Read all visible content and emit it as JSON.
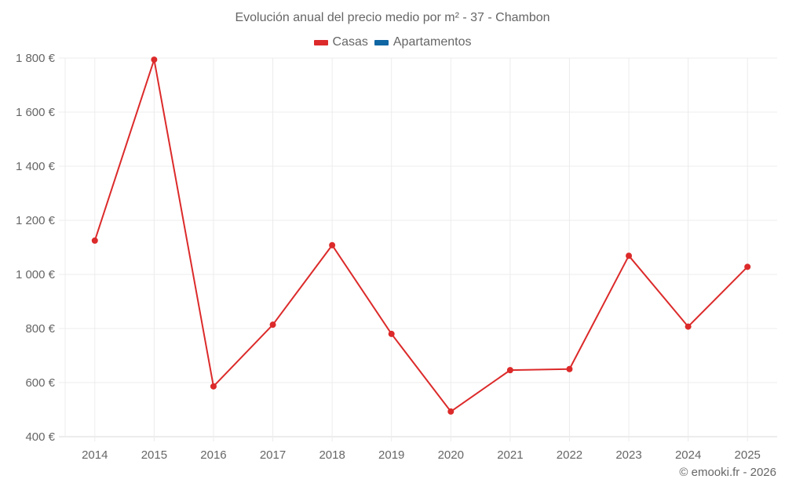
{
  "title": "Evolución anual del precio medio por m² - 37 - Chambon",
  "legend": [
    {
      "label": "Casas",
      "color": "#d62728"
    },
    {
      "label": "Apartamentos",
      "color": "#1f5f99"
    }
  ],
  "credit": "© emooki.fr - 2026",
  "colors": {
    "casas": "#dc2a2a",
    "apartamentos": "#0f66a3",
    "grid": "#ececec",
    "axis": "#d9d9d9",
    "text": "#666666"
  },
  "chart_data": {
    "type": "line",
    "title": "Evolución anual del precio medio por m² - 37 - Chambon",
    "xlabel": "",
    "ylabel": "",
    "categories": [
      "2014",
      "2015",
      "2016",
      "2017",
      "2018",
      "2019",
      "2020",
      "2021",
      "2022",
      "2023",
      "2024",
      "2025"
    ],
    "series": [
      {
        "name": "Casas",
        "color": "#dc2a2a",
        "values": [
          1125,
          1794,
          586,
          814,
          1108,
          780,
          493,
          646,
          650,
          1069,
          807,
          1028
        ]
      },
      {
        "name": "Apartamentos",
        "color": "#0f66a3",
        "values": []
      }
    ],
    "ylim": [
      400,
      1800
    ],
    "yticks": [
      400,
      600,
      800,
      1000,
      1200,
      1400,
      1600,
      1800
    ],
    "ytick_labels": [
      "400 €",
      "600 €",
      "800 €",
      "1 000 €",
      "1 200 €",
      "1 400 €",
      "1 600 €",
      "1 800 €"
    ],
    "grid": true,
    "legend_position": "top"
  }
}
